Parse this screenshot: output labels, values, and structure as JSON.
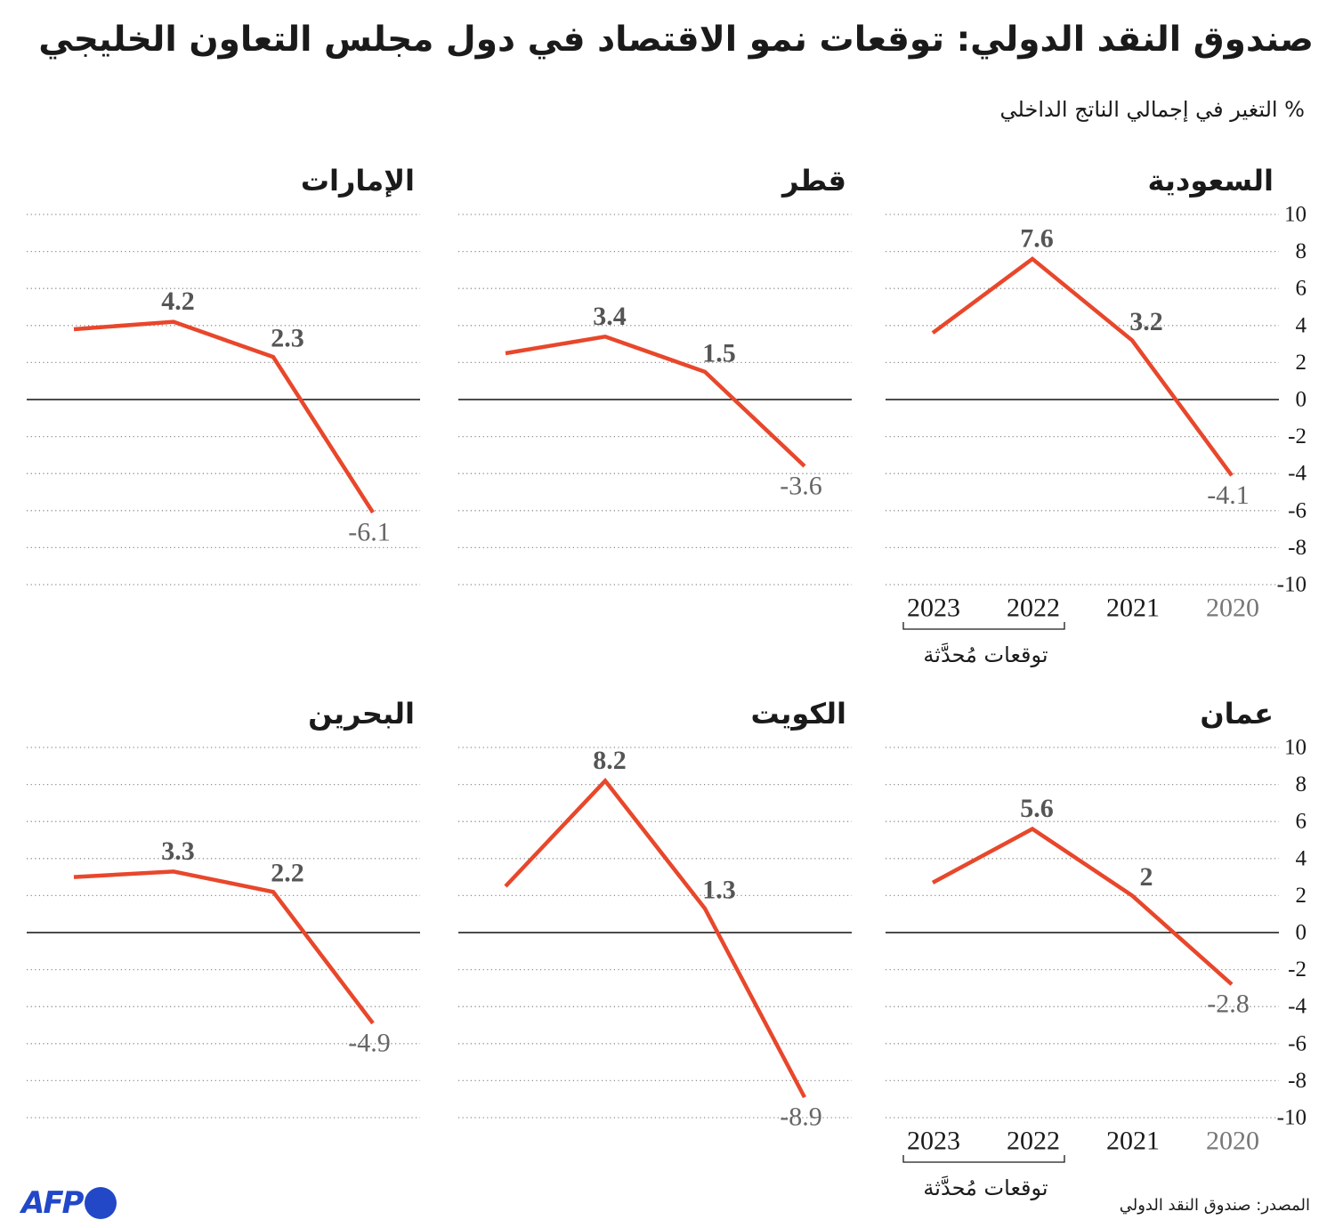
{
  "header": {
    "title": "صندوق النقد الدولي: توقعات نمو الاقتصاد في دول مجلس التعاون الخليجي",
    "subtitle": "% التغير في إجمالي الناتج الداخلي"
  },
  "colors": {
    "series_line": "#e8472b",
    "zero_line": "#111111",
    "gridline": "#8c8c8c",
    "text": "#1a1a1a",
    "muted_text": "#777777",
    "data_label": "#555555",
    "actual_label": "#666666",
    "brand": "#2248c8"
  },
  "chart_data": [
    {
      "type": "line",
      "title": "السعودية",
      "x": [
        2020,
        2021,
        2022,
        2023
      ],
      "values": [
        -4.1,
        3.2,
        7.6,
        3.6
      ],
      "labels": [
        "-4.1",
        "3.2",
        "7.6",
        null
      ],
      "ylim": [
        -10,
        10
      ],
      "y_ticks": [
        10,
        8,
        6,
        4,
        2,
        0,
        -2,
        -4,
        -6,
        -8,
        -10
      ],
      "axis_labels": true,
      "annotation": {
        "text": "توقعات مُحدَّثة",
        "x_range": [
          2022,
          2023
        ]
      }
    },
    {
      "type": "line",
      "title": "قطر",
      "x": [
        2020,
        2021,
        2022,
        2023
      ],
      "values": [
        -3.6,
        1.5,
        3.4,
        2.5
      ],
      "labels": [
        "-3.6",
        "1.5",
        "3.4",
        null
      ],
      "ylim": [
        -10,
        10
      ],
      "y_ticks": [
        10,
        8,
        6,
        4,
        2,
        0,
        -2,
        -4,
        -6,
        -8,
        -10
      ],
      "axis_labels": false
    },
    {
      "type": "line",
      "title": "الإمارات",
      "x": [
        2020,
        2021,
        2022,
        2023
      ],
      "values": [
        -6.1,
        2.3,
        4.2,
        3.8
      ],
      "labels": [
        "-6.1",
        "2.3",
        "4.2",
        null
      ],
      "ylim": [
        -10,
        10
      ],
      "y_ticks": [
        10,
        8,
        6,
        4,
        2,
        0,
        -2,
        -4,
        -6,
        -8,
        -10
      ],
      "axis_labels": false
    },
    {
      "type": "line",
      "title": "عمان",
      "x": [
        2020,
        2021,
        2022,
        2023
      ],
      "values": [
        -2.8,
        2,
        5.6,
        2.7
      ],
      "labels": [
        "-2.8",
        "2",
        "5.6",
        null
      ],
      "ylim": [
        -10,
        10
      ],
      "y_ticks": [
        10,
        8,
        6,
        4,
        2,
        0,
        -2,
        -4,
        -6,
        -8,
        -10
      ],
      "axis_labels": true,
      "annotation": {
        "text": "توقعات مُحدَّثة",
        "x_range": [
          2022,
          2023
        ]
      }
    },
    {
      "type": "line",
      "title": "الكويت",
      "x": [
        2020,
        2021,
        2022,
        2023
      ],
      "values": [
        -8.9,
        1.3,
        8.2,
        2.5
      ],
      "labels": [
        "-8.9",
        "1.3",
        "8.2",
        null
      ],
      "ylim": [
        -10,
        10
      ],
      "y_ticks": [
        10,
        8,
        6,
        4,
        2,
        0,
        -2,
        -4,
        -6,
        -8,
        -10
      ],
      "axis_labels": false
    },
    {
      "type": "line",
      "title": "البحرين",
      "x": [
        2020,
        2021,
        2022,
        2023
      ],
      "values": [
        -4.9,
        2.2,
        3.3,
        3.0
      ],
      "labels": [
        "-4.9",
        "2.2",
        "3.3",
        null
      ],
      "ylim": [
        -10,
        10
      ],
      "y_ticks": [
        10,
        8,
        6,
        4,
        2,
        0,
        -2,
        -4,
        -6,
        -8,
        -10
      ],
      "axis_labels": false
    }
  ],
  "footer": {
    "source": "المصدر: صندوق النقد الدولي",
    "logo_text": "AFP"
  }
}
